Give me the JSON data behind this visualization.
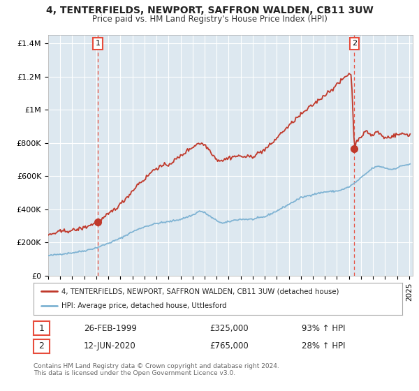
{
  "title": "4, TENTERFIELDS, NEWPORT, SAFFRON WALDEN, CB11 3UW",
  "subtitle": "Price paid vs. HM Land Registry's House Price Index (HPI)",
  "ylim": [
    0,
    1450000
  ],
  "yticks": [
    0,
    200000,
    400000,
    600000,
    800000,
    1000000,
    1200000,
    1400000
  ],
  "ytick_labels": [
    "£0",
    "£200K",
    "£400K",
    "£600K",
    "£800K",
    "£1M",
    "£1.2M",
    "£1.4M"
  ],
  "xlim_start": 1995.0,
  "xlim_end": 2025.3,
  "transaction1": {
    "date_num": 1999.12,
    "price": 325000,
    "label": "1"
  },
  "transaction2": {
    "date_num": 2020.45,
    "price": 765000,
    "label": "2"
  },
  "legend_house": "4, TENTERFIELDS, NEWPORT, SAFFRON WALDEN, CB11 3UW (detached house)",
  "legend_hpi": "HPI: Average price, detached house, Uttlesford",
  "note1_label": "1",
  "note1_date": "26-FEB-1999",
  "note1_price": "£325,000",
  "note1_pct": "93% ↑ HPI",
  "note2_label": "2",
  "note2_date": "12-JUN-2020",
  "note2_price": "£765,000",
  "note2_pct": "28% ↑ HPI",
  "footnote": "Contains HM Land Registry data © Crown copyright and database right 2024.\nThis data is licensed under the Open Government Licence v3.0.",
  "house_color": "#c0392b",
  "hpi_color": "#7fb3d3",
  "vline_color": "#e74c3c",
  "plot_bg_color": "#dde8f0",
  "background_color": "#ffffff",
  "grid_color": "#ffffff"
}
